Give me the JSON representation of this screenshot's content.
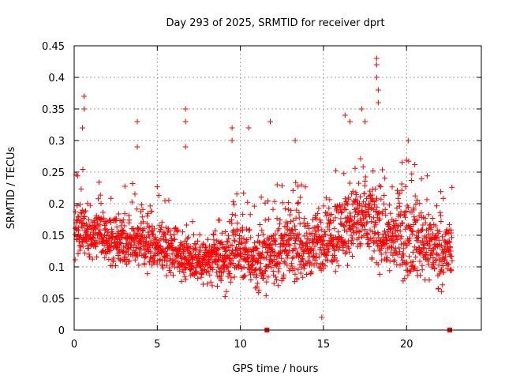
{
  "chart_data": {
    "type": "scatter",
    "title": "Day 293 of 2025, SRMTID for receiver dprt",
    "xlabel": "GPS time / hours",
    "ylabel": "SRMTID / TECUs",
    "xlim": [
      0,
      24.5
    ],
    "ylim": [
      0,
      0.45
    ],
    "x_ticks": [
      0,
      5,
      10,
      15,
      20
    ],
    "x_tick_labels": [
      "0",
      "5",
      "10",
      "15",
      "20"
    ],
    "y_ticks": [
      0,
      0.05,
      0.1,
      0.15,
      0.2,
      0.25,
      0.3,
      0.35,
      0.4,
      0.45
    ],
    "y_tick_labels": [
      "0",
      "0.05",
      "0.1",
      "0.15",
      "0.2",
      "0.25",
      "0.3",
      "0.35",
      "0.4",
      "0.45"
    ],
    "grid": true,
    "marker": "plus",
    "color": "#ff0000",
    "baseline_markers": {
      "marker": "square",
      "y": 0,
      "x": [
        11.6,
        22.6
      ]
    },
    "series": [
      {
        "name": "SRMTID",
        "profile_note": "dense scatter; per-hour typical range [low, high] and peak values",
        "hours": [
          0,
          1,
          2,
          3,
          4,
          5,
          6,
          7,
          8,
          9,
          10,
          11,
          12,
          13,
          14,
          15,
          16,
          17,
          18,
          19,
          20,
          21,
          22
        ],
        "typical_low": [
          0.11,
          0.11,
          0.1,
          0.1,
          0.1,
          0.09,
          0.09,
          0.07,
          0.07,
          0.06,
          0.08,
          0.06,
          0.07,
          0.08,
          0.08,
          0.09,
          0.1,
          0.11,
          0.1,
          0.08,
          0.08,
          0.08,
          0.07
        ],
        "typical_high": [
          0.21,
          0.2,
          0.19,
          0.18,
          0.19,
          0.18,
          0.17,
          0.16,
          0.15,
          0.16,
          0.17,
          0.16,
          0.18,
          0.19,
          0.18,
          0.19,
          0.22,
          0.24,
          0.24,
          0.21,
          0.22,
          0.21,
          0.18
        ],
        "peaks": [
          {
            "x": 0.6,
            "y": 0.37
          },
          {
            "x": 0.6,
            "y": 0.35
          },
          {
            "x": 0.5,
            "y": 0.32
          },
          {
            "x": 3.8,
            "y": 0.33
          },
          {
            "x": 3.8,
            "y": 0.29
          },
          {
            "x": 6.7,
            "y": 0.35
          },
          {
            "x": 6.7,
            "y": 0.33
          },
          {
            "x": 6.7,
            "y": 0.29
          },
          {
            "x": 9.5,
            "y": 0.32
          },
          {
            "x": 9.5,
            "y": 0.3
          },
          {
            "x": 10.5,
            "y": 0.32
          },
          {
            "x": 11.8,
            "y": 0.33
          },
          {
            "x": 13.3,
            "y": 0.3
          },
          {
            "x": 16.3,
            "y": 0.34
          },
          {
            "x": 16.6,
            "y": 0.33
          },
          {
            "x": 17.3,
            "y": 0.35
          },
          {
            "x": 17.5,
            "y": 0.33
          },
          {
            "x": 18.2,
            "y": 0.43
          },
          {
            "x": 18.2,
            "y": 0.42
          },
          {
            "x": 18.2,
            "y": 0.4
          },
          {
            "x": 18.3,
            "y": 0.38
          },
          {
            "x": 18.3,
            "y": 0.36
          },
          {
            "x": 20.1,
            "y": 0.3
          },
          {
            "x": 14.9,
            "y": 0.02
          }
        ]
      }
    ]
  }
}
